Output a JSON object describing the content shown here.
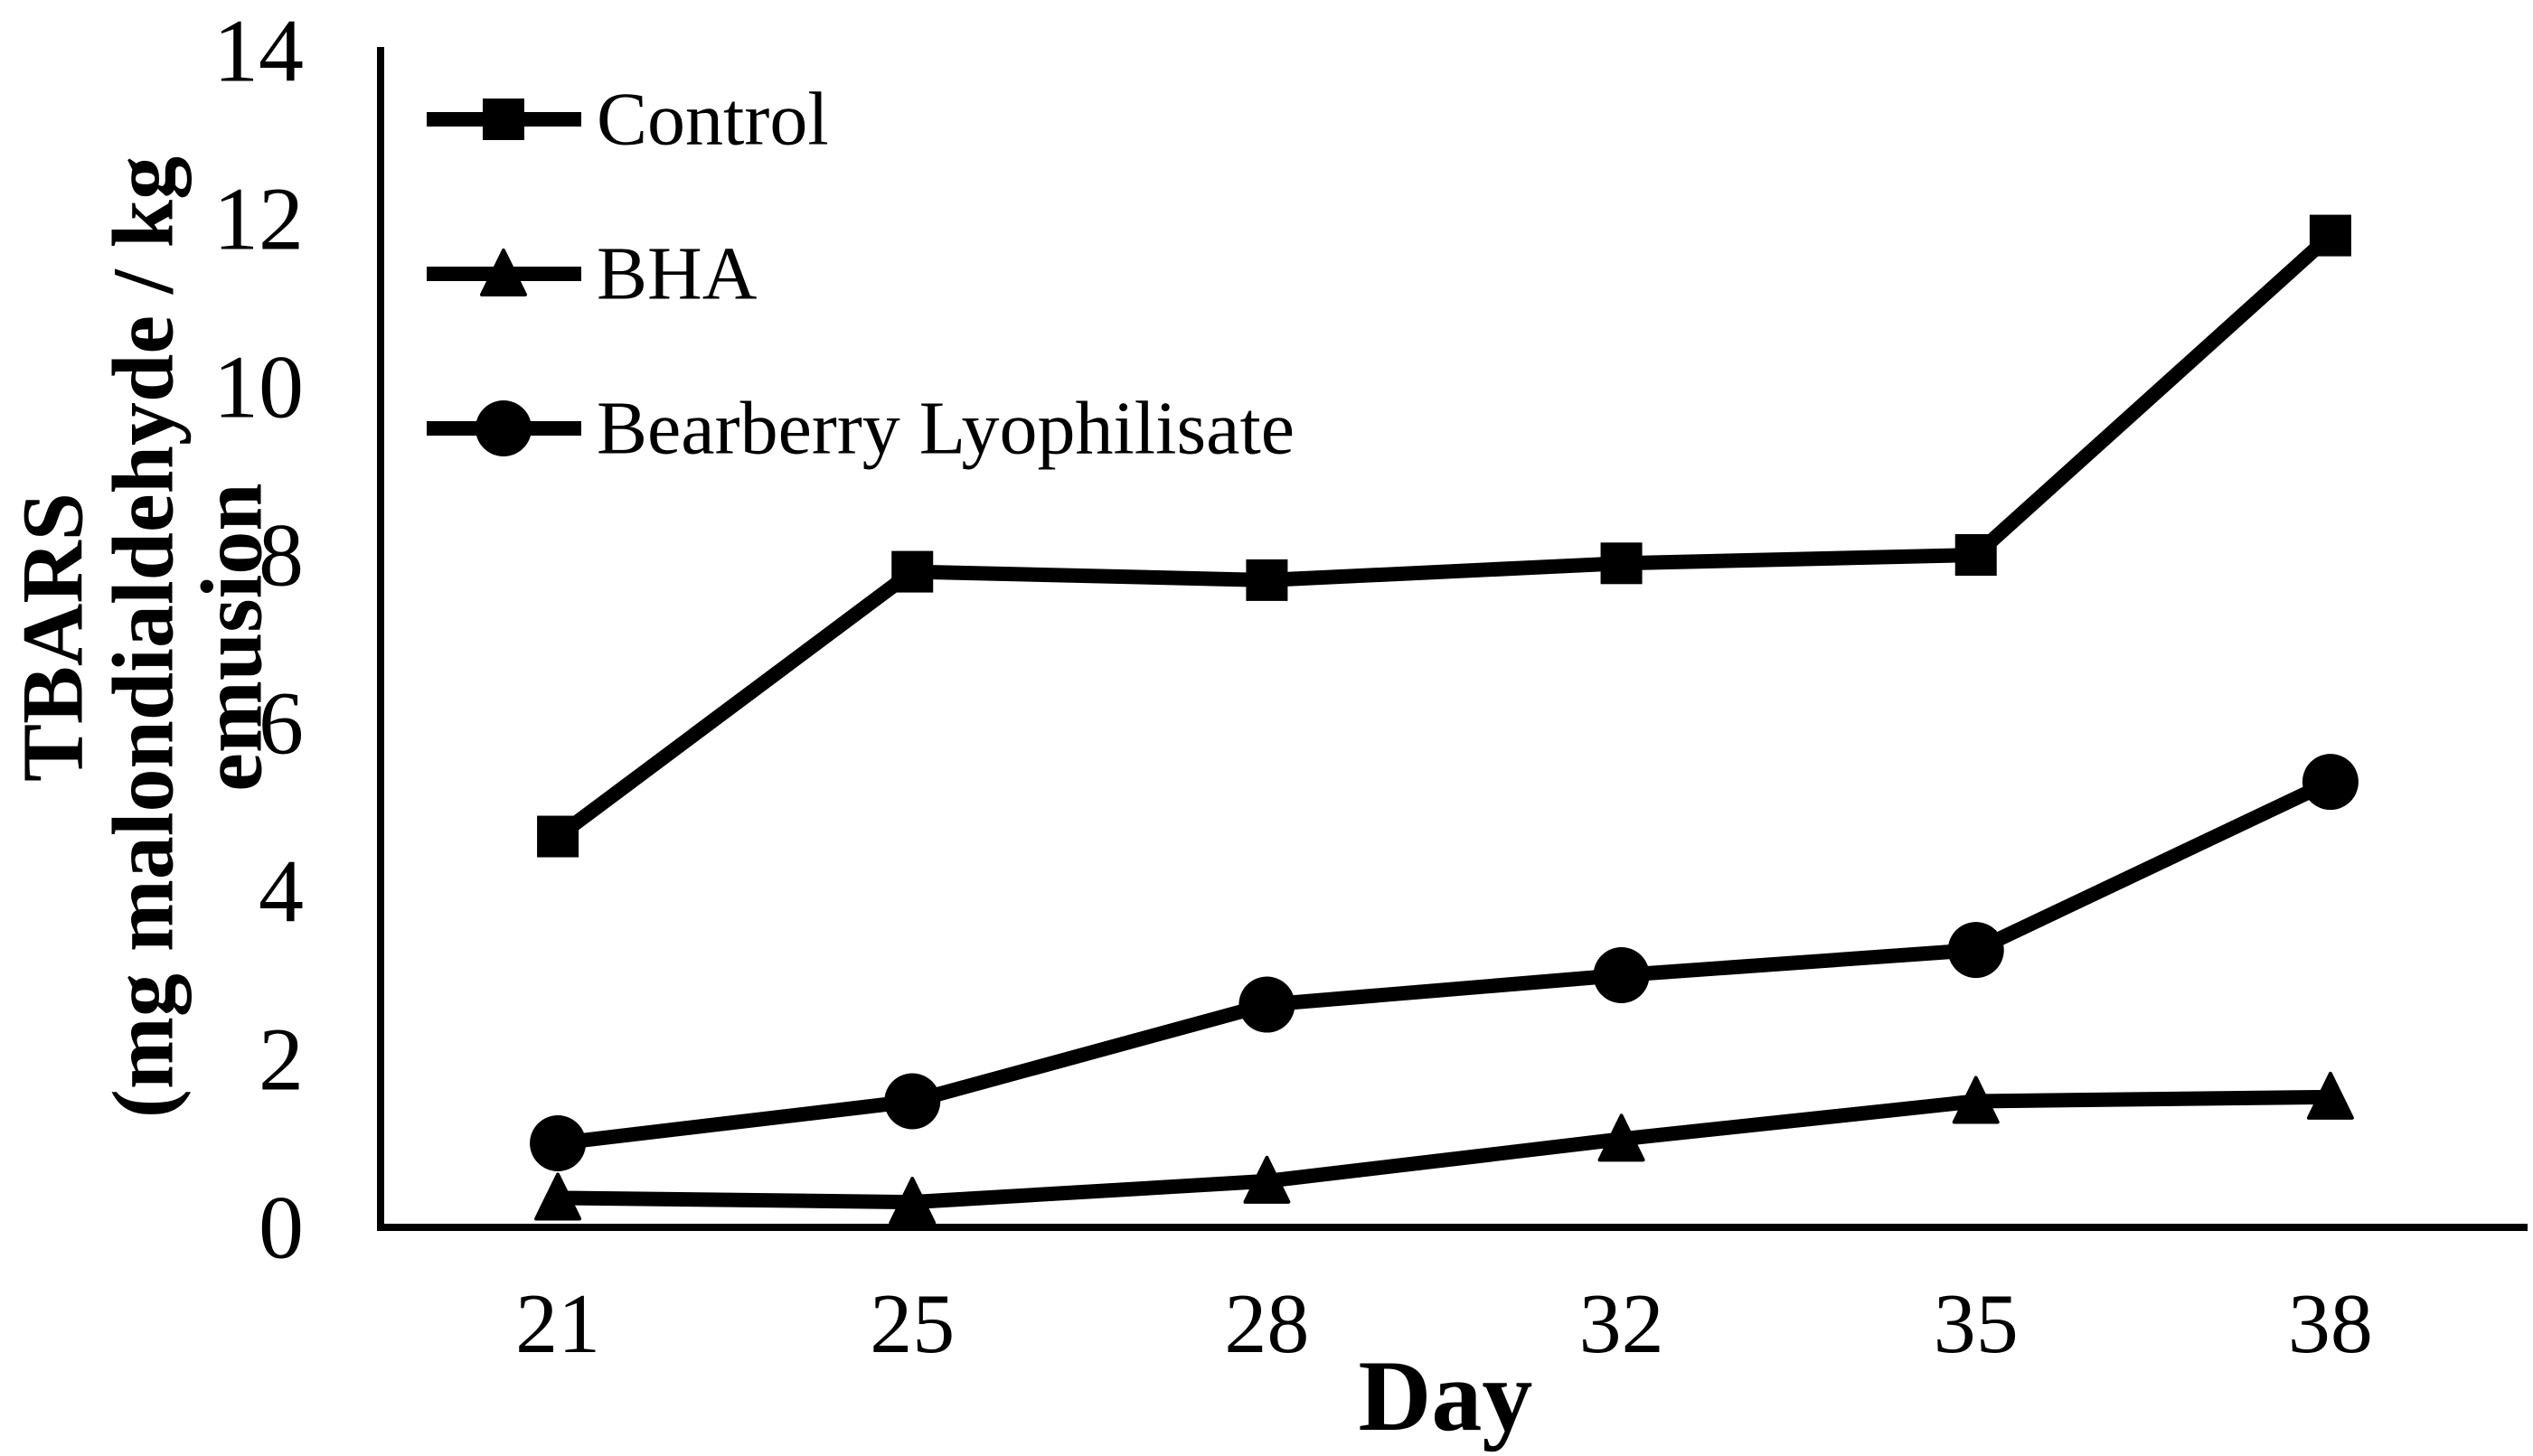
{
  "figure": {
    "background": "#ffffff",
    "ink_color": "#000000"
  },
  "chart_data": {
    "type": "line",
    "title": "",
    "xlabel": "Day",
    "ylabel": "TBARS (mg malondialdehyde / kg emusion",
    "ylabel_lines": [
      "TBARS",
      "(mg malondialdehyde / kg",
      "emusion"
    ],
    "categories": [
      "21",
      "25",
      "28",
      "32",
      "35",
      "38"
    ],
    "yticks": [
      "0",
      "2",
      "4",
      "6",
      "8",
      "10",
      "12",
      "14"
    ],
    "ylim": [
      0,
      14
    ],
    "ytick_step": 2,
    "grid": false,
    "legend_position": "top-left",
    "line_color": "#000000",
    "series": [
      {
        "name": "Control",
        "marker": "square",
        "values": [
          4.65,
          7.8,
          7.7,
          7.9,
          8.0,
          11.8
        ]
      },
      {
        "name": "BHA",
        "marker": "triangle",
        "values": [
          0.35,
          0.3,
          0.55,
          1.05,
          1.5,
          1.55
        ]
      },
      {
        "name": "Bearberry Lyophilisate",
        "marker": "circle",
        "values": [
          1.0,
          1.5,
          2.65,
          3.0,
          3.3,
          5.3
        ]
      }
    ]
  }
}
